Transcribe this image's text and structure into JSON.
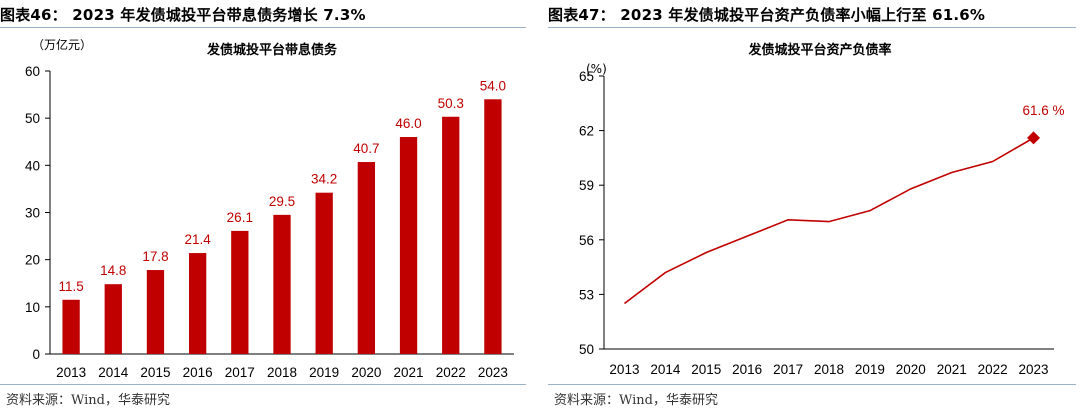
{
  "left": {
    "figure_title": "图表46：  2023 年发债城投平台带息债务增长 7.3%",
    "source": "资料来源：Wind，华泰研究",
    "colors": {
      "bar": "#c00000",
      "label": "#c00000"
    },
    "chart_data": {
      "type": "bar",
      "title": "发债城投平台带息债务",
      "unit": "（万亿元）",
      "categories": [
        "2013",
        "2014",
        "2015",
        "2016",
        "2017",
        "2018",
        "2019",
        "2020",
        "2021",
        "2022",
        "2023"
      ],
      "values": [
        11.5,
        14.8,
        17.8,
        21.4,
        26.1,
        29.5,
        34.2,
        40.7,
        46.0,
        50.3,
        54.0
      ],
      "value_labels": [
        "11.5",
        "14.8",
        "17.8",
        "21.4",
        "26.1",
        "29.5",
        "34.2",
        "40.7",
        "46.0",
        "50.3",
        "54.0"
      ],
      "ylim": [
        0,
        60
      ],
      "yticks": [
        0,
        10,
        20,
        30,
        40,
        50,
        60
      ],
      "xlabel": "",
      "ylabel": ""
    }
  },
  "right": {
    "figure_title": "图表47：  2023 年发债城投平台资产负债率小幅上行至 61.6%",
    "source": "资料来源：Wind，华泰研究",
    "colors": {
      "line": "#c00000",
      "marker": "#c00000",
      "annotation": "#c00000"
    },
    "chart_data": {
      "type": "line",
      "title": "发债城投平台资产负债率",
      "unit": "(%)",
      "categories": [
        "2013",
        "2014",
        "2015",
        "2016",
        "2017",
        "2018",
        "2019",
        "2020",
        "2021",
        "2022",
        "2023"
      ],
      "series": [
        {
          "values": [
            52.5,
            54.2,
            55.3,
            56.2,
            57.1,
            57.0,
            57.6,
            58.8,
            59.7,
            60.3,
            61.6
          ]
        }
      ],
      "annotation": "61.6 %",
      "ylim": [
        50,
        65
      ],
      "yticks": [
        50,
        53,
        56,
        59,
        62,
        65
      ],
      "xlabel": "",
      "ylabel": ""
    }
  }
}
